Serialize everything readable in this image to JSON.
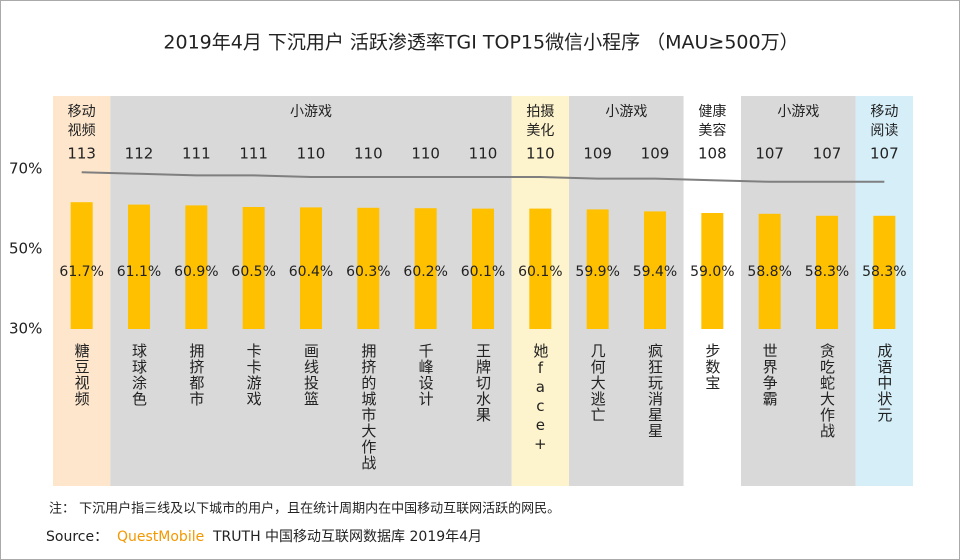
{
  "chart_data": {
    "type": "bar",
    "title": "2019年4月 下沉用户  活跃渗透率TGI TOP15微信小程序  （MAU≥500万）",
    "categories": [
      "糖豆视频",
      "球球涂色",
      "拥挤都市",
      "卡卡游戏",
      "画线投篮",
      "拥挤的城市大作战",
      "千峰设计",
      "王牌切水果",
      "她face+",
      "几何大逃亡",
      "疯狂玩消星星",
      "步数宝",
      "世界争霸",
      "贪吃蛇大作战",
      "成语中状元"
    ],
    "groups": [
      {
        "label": "移动视频",
        "span": 1,
        "color": "#fde6cc"
      },
      {
        "label": "小游戏",
        "span": 7,
        "color": "#d9d9d9"
      },
      {
        "label": "拍摄美化",
        "span": 1,
        "color": "#fdf3cc"
      },
      {
        "label": "小游戏",
        "span": 2,
        "color": "#d9d9d9"
      },
      {
        "label": "健康美容",
        "span": 1,
        "color": "#ffffff"
      },
      {
        "label": "小游戏",
        "span": 2,
        "color": "#d9d9d9"
      },
      {
        "label": "移动阅读",
        "span": 1,
        "color": "#d5eef8"
      }
    ],
    "series": [
      {
        "type": "bar",
        "color": "#ffc000",
        "values": [
          61.7,
          61.1,
          60.9,
          60.5,
          60.4,
          60.3,
          60.2,
          60.1,
          60.1,
          59.9,
          59.4,
          59.0,
          58.8,
          58.3,
          58.3
        ],
        "value_labels": [
          "61.7%",
          "61.1%",
          "60.9%",
          "60.5%",
          "60.4%",
          "60.3%",
          "60.2%",
          "60.1%",
          "60.1%",
          "59.9%",
          "59.4%",
          "59.0%",
          "58.8%",
          "58.3%",
          "58.3%"
        ]
      },
      {
        "type": "line",
        "axis": "y2",
        "color": "#7f7f7f",
        "values": [
          113,
          112,
          111,
          111,
          110,
          110,
          110,
          110,
          110,
          109,
          109,
          108,
          107,
          107,
          107
        ]
      }
    ],
    "ylim": [
      30,
      70
    ],
    "yticks": [
      {
        "value": 30,
        "label": "30%"
      },
      {
        "value": 50,
        "label": "50%"
      },
      {
        "value": 70,
        "label": "70%"
      }
    ],
    "y2lim": [
      15,
      115
    ],
    "grid": false,
    "note": "注：  下沉用户指三线及以下城市的用户，且在统计周期内在中国移动互联网活跃的网民。",
    "source_label": "Source：",
    "source_brand": "QuestMobile",
    "source_text": "TRUTH 中国移动互联网数据库 2019年4月"
  }
}
